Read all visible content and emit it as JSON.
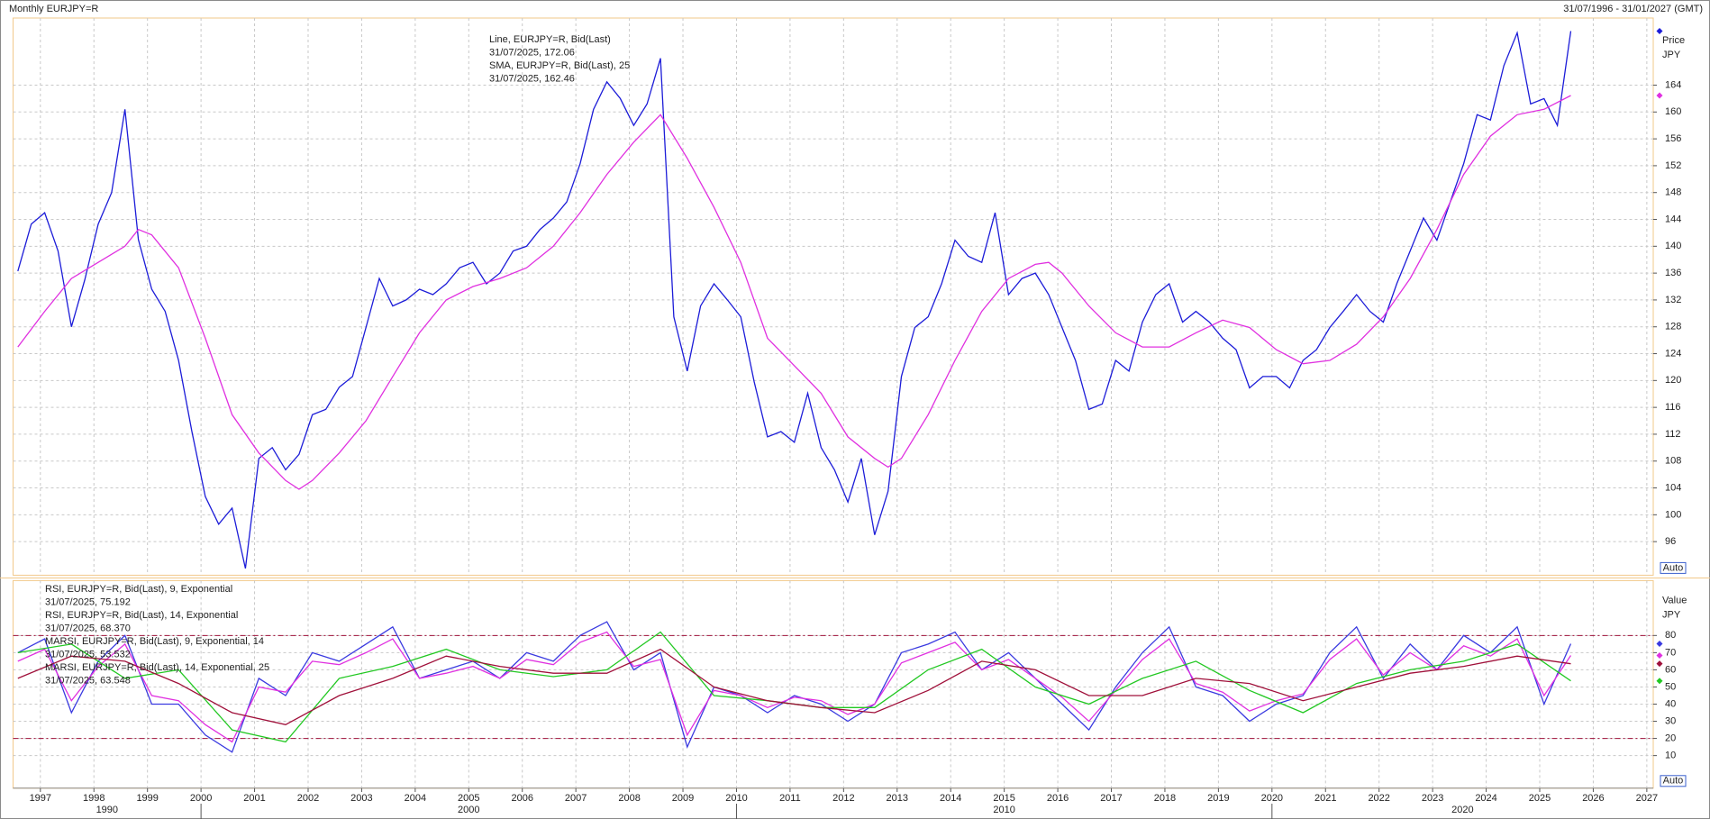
{
  "header": {
    "title": "Monthly EURJPY=R",
    "range": "31/07/1996 - 31/01/2027 (GMT)"
  },
  "x_axis": {
    "xlim": [
      1996.49,
      2027.12
    ],
    "xticks": [
      1997,
      1998,
      1999,
      2000,
      2001,
      2002,
      2003,
      2004,
      2005,
      2006,
      2007,
      2008,
      2009,
      2010,
      2011,
      2012,
      2013,
      2014,
      2015,
      2016,
      2017,
      2018,
      2019,
      2020,
      2021,
      2022,
      2023,
      2024,
      2025,
      2026,
      2027
    ],
    "decade_ticks": [
      2000,
      2010,
      2020
    ],
    "decade_labels": [
      "1990",
      "2000",
      "2010",
      "2020"
    ]
  },
  "chart_data": [
    {
      "type": "line",
      "axis_title": [
        "Price",
        "JPY"
      ],
      "scale_button": "Auto",
      "ylim": [
        91,
        174
      ],
      "yticks": [
        96,
        100,
        104,
        108,
        112,
        116,
        120,
        124,
        128,
        132,
        136,
        140,
        144,
        148,
        152,
        156,
        160,
        164
      ],
      "grid": true,
      "series": [
        {
          "name": "Line, EURJPY=R, Bid(Last)",
          "legend_value": "31/07/2025, 172.06",
          "color": "#1c1cd8",
          "x": [
            1996.58,
            1996.83,
            1997.08,
            1997.33,
            1997.58,
            1997.83,
            1998.08,
            1998.33,
            1998.58,
            1998.83,
            1999.08,
            1999.33,
            1999.58,
            1999.83,
            2000.08,
            2000.33,
            2000.58,
            2000.83,
            2001.08,
            2001.33,
            2001.58,
            2001.83,
            2002.08,
            2002.33,
            2002.58,
            2002.83,
            2003.08,
            2003.33,
            2003.58,
            2003.83,
            2004.08,
            2004.33,
            2004.58,
            2004.83,
            2005.08,
            2005.33,
            2005.58,
            2005.83,
            2006.08,
            2006.33,
            2006.58,
            2006.83,
            2007.08,
            2007.33,
            2007.58,
            2007.83,
            2008.08,
            2008.33,
            2008.58,
            2008.83,
            2009.08,
            2009.33,
            2009.58,
            2009.83,
            2010.08,
            2010.33,
            2010.58,
            2010.83,
            2011.08,
            2011.33,
            2011.58,
            2011.83,
            2012.08,
            2012.33,
            2012.58,
            2012.83,
            2013.08,
            2013.33,
            2013.58,
            2013.83,
            2014.08,
            2014.33,
            2014.58,
            2014.83,
            2015.08,
            2015.33,
            2015.58,
            2015.83,
            2016.08,
            2016.33,
            2016.58,
            2016.83,
            2017.08,
            2017.33,
            2017.58,
            2017.83,
            2018.08,
            2018.33,
            2018.58,
            2018.83,
            2019.08,
            2019.33,
            2019.58,
            2019.83,
            2020.08,
            2020.33,
            2020.58,
            2020.83,
            2021.08,
            2021.33,
            2021.58,
            2021.83,
            2022.08,
            2022.33,
            2022.58,
            2022.83,
            2023.08,
            2023.33,
            2023.58,
            2023.83,
            2024.08,
            2024.33,
            2024.58,
            2024.83,
            2025.08,
            2025.33,
            2025.58
          ],
          "values": [
            136.3,
            143.3,
            145,
            139.3,
            128,
            135,
            143.3,
            148,
            160.4,
            141,
            133.6,
            130.3,
            123,
            112.4,
            102.7,
            98.6,
            101,
            92,
            108.4,
            110,
            106.7,
            109,
            114.9,
            115.7,
            119,
            120.6,
            127.9,
            135.2,
            131.1,
            132,
            133.6,
            132.8,
            134.4,
            136.8,
            137.6,
            134.4,
            136,
            139.3,
            140,
            142.5,
            144.2,
            146.6,
            152.3,
            160.4,
            164.5,
            162,
            158,
            161.2,
            168,
            129.5,
            121.4,
            131.1,
            134.4,
            132,
            129.5,
            119.8,
            111.6,
            112.4,
            110.8,
            118.1,
            110,
            106.7,
            101.9,
            108.4,
            97,
            103.5,
            120.6,
            127.9,
            129.5,
            134.4,
            140.9,
            138.5,
            137.6,
            145,
            132.8,
            135.2,
            136,
            132.8,
            127.9,
            123,
            115.7,
            116.5,
            123,
            121.4,
            128.7,
            132.8,
            134.4,
            128.7,
            130.3,
            128.7,
            126.3,
            124.6,
            118.9,
            120.6,
            120.6,
            118.9,
            123,
            124.6,
            127.9,
            130.3,
            132.8,
            130.3,
            128.7,
            134.4,
            139.3,
            144.2,
            140.9,
            146.6,
            152.3,
            159.6,
            158.8,
            166.9,
            171.8,
            161.2,
            162,
            158,
            172.06
          ]
        },
        {
          "name": "SMA, EURJPY=R, Bid(Last),  25",
          "legend_value": "31/07/2025, 162.46",
          "color": "#e030e0",
          "x": [
            1996.58,
            1997.08,
            1997.58,
            1998.08,
            1998.58,
            1998.83,
            1999.08,
            1999.58,
            2000.08,
            2000.58,
            2001.08,
            2001.58,
            2001.83,
            2002.08,
            2002.58,
            2003.08,
            2003.58,
            2004.08,
            2004.58,
            2005.08,
            2005.58,
            2006.08,
            2006.58,
            2007.08,
            2007.58,
            2008.08,
            2008.58,
            2009.08,
            2009.58,
            2010.08,
            2010.58,
            2011.08,
            2011.58,
            2012.08,
            2012.58,
            2012.83,
            2013.08,
            2013.58,
            2014.08,
            2014.58,
            2015.08,
            2015.58,
            2015.83,
            2016.08,
            2016.58,
            2017.08,
            2017.58,
            2018.08,
            2018.58,
            2019.08,
            2019.58,
            2020.08,
            2020.58,
            2021.08,
            2021.58,
            2022.08,
            2022.58,
            2023.08,
            2023.58,
            2024.08,
            2024.58,
            2025.08,
            2025.58
          ],
          "values": [
            125,
            130.3,
            135.2,
            137.6,
            140,
            142.5,
            141.7,
            136.8,
            126.3,
            114.9,
            109.2,
            105.1,
            103.8,
            105.1,
            109.2,
            114,
            120.6,
            127.1,
            132,
            134,
            135.2,
            136.8,
            140,
            145,
            150.7,
            155.5,
            159.6,
            153.1,
            145.8,
            137.6,
            126.3,
            122.2,
            118.1,
            111.6,
            108.4,
            107.1,
            108.4,
            114.9,
            123,
            130.3,
            135.2,
            137.3,
            137.6,
            136,
            131.1,
            127.1,
            125,
            125,
            127.1,
            129,
            127.9,
            124.6,
            122.5,
            123,
            125.4,
            129.5,
            135.2,
            142.5,
            150.7,
            156.4,
            159.6,
            160.4,
            162.46
          ]
        }
      ]
    },
    {
      "type": "line",
      "axis_title": [
        "Value",
        "JPY"
      ],
      "scale_button": "Auto",
      "ylim": [
        -9,
        112
      ],
      "yticks": [
        10,
        20,
        30,
        40,
        50,
        60,
        70,
        80
      ],
      "grid": true,
      "levels": [
        80,
        20
      ],
      "level_color": "#a0103a",
      "series": [
        {
          "name": "RSI, EURJPY=R, Bid(Last),  9, Exponential",
          "legend_value": "31/07/2025, 75.192",
          "color": "#3a3ae0",
          "x": [
            1996.58,
            1997.08,
            1997.58,
            1998.08,
            1998.58,
            1999.08,
            1999.58,
            2000.08,
            2000.58,
            2001.08,
            2001.58,
            2002.08,
            2002.58,
            2003.08,
            2003.58,
            2004.08,
            2004.58,
            2005.08,
            2005.58,
            2006.08,
            2006.58,
            2007.08,
            2007.58,
            2008.08,
            2008.58,
            2009.08,
            2009.58,
            2010.08,
            2010.58,
            2011.08,
            2011.58,
            2012.08,
            2012.58,
            2013.08,
            2013.58,
            2014.08,
            2014.58,
            2015.08,
            2015.58,
            2016.08,
            2016.58,
            2017.08,
            2017.58,
            2018.08,
            2018.58,
            2019.08,
            2019.58,
            2020.08,
            2020.58,
            2021.08,
            2021.58,
            2022.08,
            2022.58,
            2023.08,
            2023.58,
            2024.08,
            2024.58,
            2025.08,
            2025.58
          ],
          "values": [
            70,
            78,
            35,
            65,
            80,
            40,
            40,
            22,
            12,
            55,
            45,
            70,
            65,
            75,
            85,
            55,
            60,
            65,
            55,
            70,
            65,
            80,
            88,
            60,
            70,
            15,
            50,
            45,
            35,
            45,
            40,
            30,
            40,
            70,
            75,
            82,
            60,
            70,
            55,
            40,
            25,
            50,
            70,
            85,
            50,
            45,
            30,
            40,
            45,
            70,
            85,
            55,
            75,
            60,
            80,
            70,
            85,
            40,
            75.192
          ]
        },
        {
          "name": "RSI, EURJPY=R, Bid(Last),  14, Exponential",
          "legend_value": "31/07/2025, 68.370",
          "color": "#e030e0",
          "x": [
            1996.58,
            1997.08,
            1997.58,
            1998.08,
            1998.58,
            1999.08,
            1999.58,
            2000.08,
            2000.58,
            2001.08,
            2001.58,
            2002.08,
            2002.58,
            2003.08,
            2003.58,
            2004.08,
            2004.58,
            2005.08,
            2005.58,
            2006.08,
            2006.58,
            2007.08,
            2007.58,
            2008.08,
            2008.58,
            2009.08,
            2009.58,
            2010.08,
            2010.58,
            2011.08,
            2011.58,
            2012.08,
            2012.58,
            2013.08,
            2013.58,
            2014.08,
            2014.58,
            2015.08,
            2015.58,
            2016.08,
            2016.58,
            2017.08,
            2017.58,
            2018.08,
            2018.58,
            2019.08,
            2019.58,
            2020.08,
            2020.58,
            2021.08,
            2021.58,
            2022.08,
            2022.58,
            2023.08,
            2023.58,
            2024.08,
            2024.58,
            2025.08,
            2025.58
          ],
          "values": [
            65,
            72,
            42,
            62,
            75,
            45,
            42,
            28,
            18,
            50,
            47,
            65,
            63,
            70,
            78,
            55,
            58,
            62,
            55,
            66,
            63,
            76,
            82,
            62,
            66,
            22,
            48,
            45,
            38,
            44,
            42,
            34,
            40,
            64,
            70,
            76,
            60,
            66,
            55,
            44,
            30,
            48,
            66,
            78,
            52,
            47,
            36,
            42,
            46,
            66,
            78,
            57,
            70,
            60,
            74,
            68,
            78,
            45,
            68.37
          ]
        },
        {
          "name": "MARSI, EURJPY=R, Bid(Last),  9, Exponential, 14",
          "legend_value": "31/07/2025, 53.532",
          "color": "#22c822",
          "x": [
            1996.58,
            1997.58,
            1998.58,
            1999.58,
            2000.58,
            2001.58,
            2002.58,
            2003.58,
            2004.58,
            2005.58,
            2006.58,
            2007.58,
            2008.58,
            2009.58,
            2010.58,
            2011.58,
            2012.58,
            2013.58,
            2014.58,
            2015.58,
            2016.58,
            2017.58,
            2018.58,
            2019.58,
            2020.58,
            2021.58,
            2022.58,
            2023.58,
            2024.58,
            2025.58
          ],
          "values": [
            70,
            75,
            55,
            60,
            25,
            18,
            55,
            62,
            72,
            60,
            56,
            60,
            82,
            45,
            42,
            38,
            38,
            60,
            72,
            50,
            40,
            55,
            65,
            48,
            35,
            52,
            60,
            65,
            75,
            53.532
          ]
        },
        {
          "name": "MARSI, EURJPY=R, Bid(Last),  14, Exponential, 25",
          "legend_value": "31/07/2025, 63.548",
          "color": "#a0103a",
          "x": [
            1996.58,
            1997.58,
            1998.58,
            1999.58,
            2000.58,
            2001.58,
            2002.58,
            2003.58,
            2004.58,
            2005.58,
            2006.58,
            2007.58,
            2008.58,
            2009.58,
            2010.58,
            2011.58,
            2012.58,
            2013.58,
            2014.58,
            2015.58,
            2016.58,
            2017.58,
            2018.58,
            2019.58,
            2020.58,
            2021.58,
            2022.58,
            2023.58,
            2024.58,
            2025.58
          ],
          "values": [
            55,
            68,
            65,
            52,
            35,
            28,
            45,
            55,
            68,
            62,
            58,
            58,
            72,
            50,
            42,
            38,
            35,
            48,
            65,
            60,
            45,
            45,
            55,
            52,
            42,
            50,
            58,
            62,
            68,
            63.548
          ]
        }
      ]
    }
  ]
}
